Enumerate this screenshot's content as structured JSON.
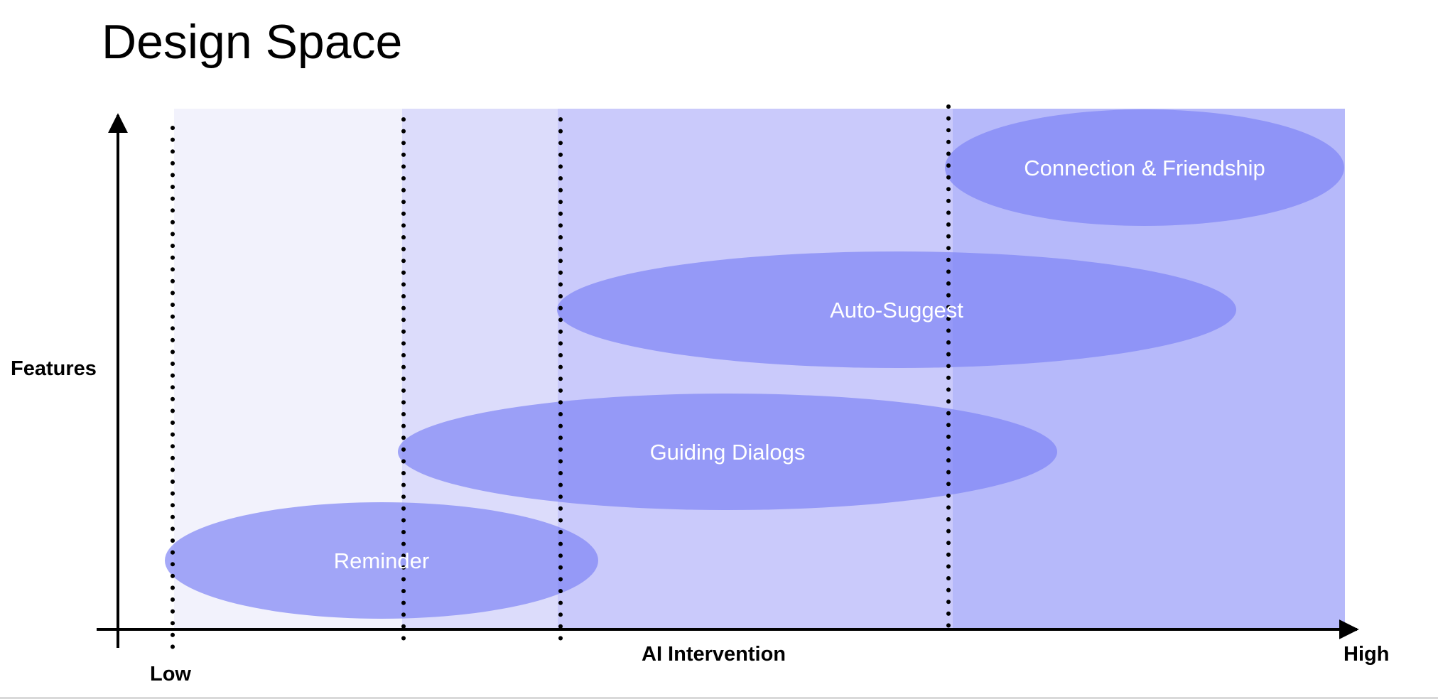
{
  "title": "Design Space",
  "axes": {
    "y_label": "Features",
    "x_label": "AI Intervention",
    "x_low": "Low",
    "x_high": "High"
  },
  "colors": {
    "band_1": "#f2f2fc",
    "band_2": "#dcdcfb",
    "band_3": "#cacafb",
    "band_4": "#b6b9fa",
    "ellipse": "#7f85f5",
    "ellipse_text": "#ffffff"
  },
  "features": [
    {
      "label": "Reminder"
    },
    {
      "label": "Guiding Dialogs"
    },
    {
      "label": "Auto-Suggest"
    },
    {
      "label": "Connection & Friendship"
    }
  ]
}
